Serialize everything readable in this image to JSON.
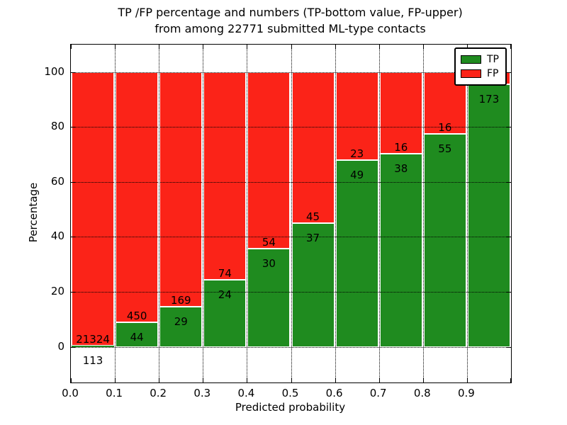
{
  "figure": {
    "background": "#ffffff"
  },
  "colors": {
    "tp": "#1f8b1f",
    "fp": "#fb2318",
    "grid": "#000000",
    "frame": "#000000"
  },
  "chart_data": {
    "type": "bar",
    "stacked": true,
    "title": "TP /FP percentage and numbers (TP-bottom value, FP-upper) from among 22771 submitted ML-type contacts",
    "title_line1": "TP /FP percentage and numbers (TP-bottom value, FP-upper)",
    "title_line2": "from among 22771 submitted ML-type contacts",
    "xlabel": "Predicted probability",
    "ylabel": "Percentage",
    "total_submitted_contacts": 22771,
    "xlim": [
      0.0,
      1.0
    ],
    "ylim": [
      -13,
      110
    ],
    "grid": true,
    "x_tick_labels": [
      "0.0",
      "0.1",
      "0.2",
      "0.3",
      "0.4",
      "0.5",
      "0.6",
      "0.7",
      "0.8",
      "0.9"
    ],
    "y_tick_values": [
      0,
      20,
      40,
      60,
      80,
      100
    ],
    "legend": {
      "position": "upper right",
      "entries": [
        {
          "label": "TP",
          "color": "#1f8b1f"
        },
        {
          "label": "FP",
          "color": "#fb2318"
        }
      ]
    },
    "bins": [
      {
        "range": [
          0.0,
          0.1
        ],
        "tp": 113,
        "fp": 21324,
        "tp_pct": 0.53
      },
      {
        "range": [
          0.1,
          0.2
        ],
        "tp": 44,
        "fp": 450,
        "tp_pct": 8.91
      },
      {
        "range": [
          0.2,
          0.3
        ],
        "tp": 29,
        "fp": 169,
        "tp_pct": 14.65
      },
      {
        "range": [
          0.3,
          0.4
        ],
        "tp": 24,
        "fp": 74,
        "tp_pct": 24.49
      },
      {
        "range": [
          0.4,
          0.5
        ],
        "tp": 30,
        "fp": 54,
        "tp_pct": 35.71
      },
      {
        "range": [
          0.5,
          0.6
        ],
        "tp": 37,
        "fp": 45,
        "tp_pct": 45.12
      },
      {
        "range": [
          0.6,
          0.7
        ],
        "tp": 49,
        "fp": 23,
        "tp_pct": 68.06
      },
      {
        "range": [
          0.7,
          0.8
        ],
        "tp": 38,
        "fp": 16,
        "tp_pct": 70.37
      },
      {
        "range": [
          0.8,
          0.9
        ],
        "tp": 55,
        "fp": 16,
        "tp_pct": 77.46
      },
      {
        "range": [
          0.9,
          1.0
        ],
        "tp": 173,
        "fp": null,
        "tp_pct": 95.6,
        "fp_label_hidden_by_legend": true
      }
    ]
  }
}
